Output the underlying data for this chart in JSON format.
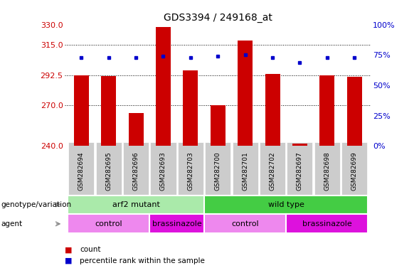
{
  "title": "GDS3394 / 249168_at",
  "samples": [
    "GSM282694",
    "GSM282695",
    "GSM282696",
    "GSM282693",
    "GSM282703",
    "GSM282700",
    "GSM282701",
    "GSM282702",
    "GSM282697",
    "GSM282698",
    "GSM282699"
  ],
  "counts": [
    292.5,
    292.0,
    264.5,
    328.0,
    296.0,
    270.0,
    318.0,
    293.5,
    242.0,
    292.5,
    291.5
  ],
  "percentile_ranks": [
    73,
    73,
    73,
    74,
    73,
    74,
    75,
    73,
    69,
    73,
    73
  ],
  "ymin": 240,
  "ymax": 330,
  "yticks_left": [
    240,
    270,
    292.5,
    315,
    330
  ],
  "yticks_right": [
    0,
    25,
    50,
    75,
    100
  ],
  "yright_min": 0,
  "yright_max": 100,
  "bar_color": "#cc0000",
  "dot_color": "#0000cc",
  "bar_width": 0.55,
  "grid_lines": [
    270,
    292.5,
    315
  ],
  "genotype_groups": [
    {
      "label": "arf2 mutant",
      "start": 0,
      "end": 4,
      "color": "#aaeaaa"
    },
    {
      "label": "wild type",
      "start": 5,
      "end": 10,
      "color": "#44cc44"
    }
  ],
  "agent_groups": [
    {
      "label": "control",
      "start": 0,
      "end": 2,
      "color": "#ee88ee"
    },
    {
      "label": "brassinazole",
      "start": 3,
      "end": 4,
      "color": "#dd11dd"
    },
    {
      "label": "control",
      "start": 5,
      "end": 7,
      "color": "#ee88ee"
    },
    {
      "label": "brassinazole",
      "start": 8,
      "end": 10,
      "color": "#dd11dd"
    }
  ],
  "title_fontsize": 10,
  "tick_label_fontsize": 7,
  "legend_bar_color": "#cc0000",
  "legend_dot_color": "#0000cc"
}
